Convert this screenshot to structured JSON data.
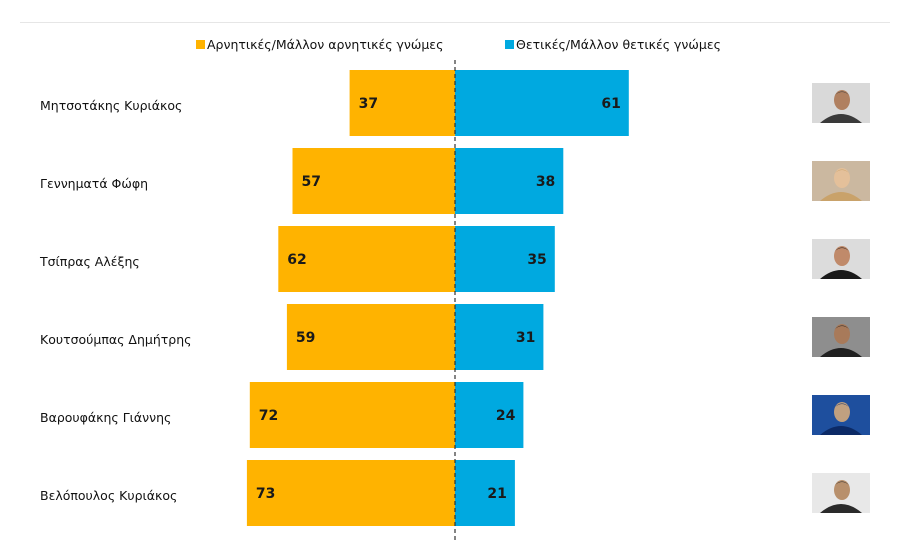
{
  "chart_data": {
    "type": "bar",
    "orientation": "horizontal-diverging",
    "categories": [
      "Μητσοτάκης Κυριάκος",
      "Γεννηματά Φώφη",
      "Τσίπρας Αλέξης",
      "Κουτσούμπας Δημήτρης",
      "Βαρουφάκης Γιάννης",
      "Βελόπουλος Κυριάκος"
    ],
    "series": [
      {
        "name": "Αρνητικές/Μάλλον αρνητικές γνώμες",
        "color": "#FFB300",
        "side": "left",
        "values": [
          37,
          57,
          62,
          59,
          72,
          73
        ]
      },
      {
        "name": "Θετικές/Μάλλον θετικές γνώμες",
        "color": "#00A9E0",
        "side": "right",
        "values": [
          61,
          38,
          35,
          31,
          24,
          21
        ]
      }
    ],
    "legend_position": "top",
    "center_axis": "dashed",
    "grid": false
  },
  "photos": [
    {
      "icon": "portrait-photo",
      "colors": [
        "#d9d9d9",
        "#3a3a3a",
        "#b08060"
      ]
    },
    {
      "icon": "portrait-photo",
      "colors": [
        "#cbb8a0",
        "#c9a26a",
        "#e4c09a"
      ]
    },
    {
      "icon": "portrait-photo",
      "colors": [
        "#dcdcdc",
        "#1a1a1a",
        "#c08a6a"
      ]
    },
    {
      "icon": "portrait-photo",
      "colors": [
        "#8e8e8e",
        "#202020",
        "#a87a5a"
      ]
    },
    {
      "icon": "portrait-photo",
      "colors": [
        "#1e4f9e",
        "#0c2a66",
        "#c0a080"
      ]
    },
    {
      "icon": "portrait-photo",
      "colors": [
        "#e8e8e8",
        "#2a2a2a",
        "#b8906c"
      ]
    }
  ]
}
